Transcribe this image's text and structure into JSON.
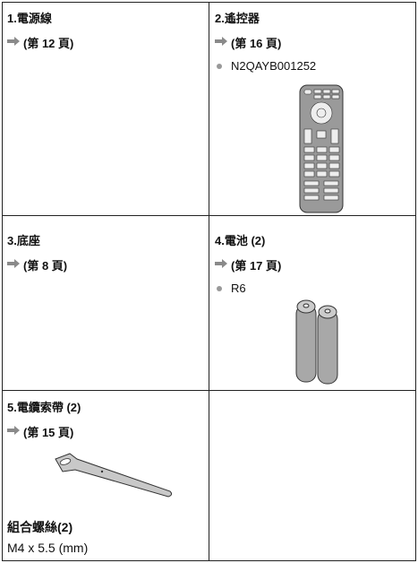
{
  "cells": [
    {
      "title": "1.電源線",
      "ref": "(第 12 頁)"
    },
    {
      "title": "2.遙控器",
      "ref": "(第 16 頁)",
      "note": "N2QAYB001252"
    },
    {
      "title": "3.底座",
      "ref": "(第 8 頁)"
    },
    {
      "title": "4.電池 (2)",
      "ref": "(第 17 頁)",
      "note": "R6"
    },
    {
      "title": "5.電纜索帶 (2)",
      "ref": "(第 15 頁)",
      "extra_title": "組合螺絲(2)",
      "extra_text": "M4 x 5.5 (mm)"
    }
  ]
}
